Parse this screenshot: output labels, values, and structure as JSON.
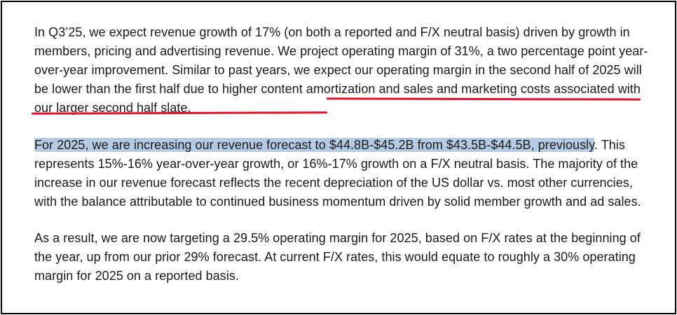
{
  "paragraphs": {
    "p1": {
      "text_before": "In Q3’25, we expect revenue growth of 17% (on both a reported and F/X neutral basis) driven by growth in members, pricing and advertising revenue. We project operating margin of 31%, a two percentage point year-over-year improvement. Similar to past years, we expect our operating margin in the second half of 2025 will be lower than the first half due to ",
      "underlined": "higher content amortization and sales and marketing costs associated with our larger second half slate."
    },
    "p2": {
      "highlighted": "For 2025, we are increasing our revenue forecast to $44.8B-$45.2B from $43.5B-$44.5B, previously",
      "text_after": ". This represents 15%-16% year-over-year growth, or 16%-17% growth on a F/X neutral basis. The majority of the increase in our revenue forecast reflects the recent depreciation of the US dollar vs. most other currencies, with the balance attributable to continued business momentum driven by solid member growth and ad sales."
    },
    "p3": {
      "text": "As a result, we are now targeting a 29.5% operating margin for 2025, based on F/X rates at the beginning of the year, up from our prior 29% forecast. At current F/X rates, this would equate to roughly a 30% operating margin for 2025 on a reported basis."
    }
  },
  "annotation_color": "#e4102e",
  "highlight_color": "#b5cbe3"
}
